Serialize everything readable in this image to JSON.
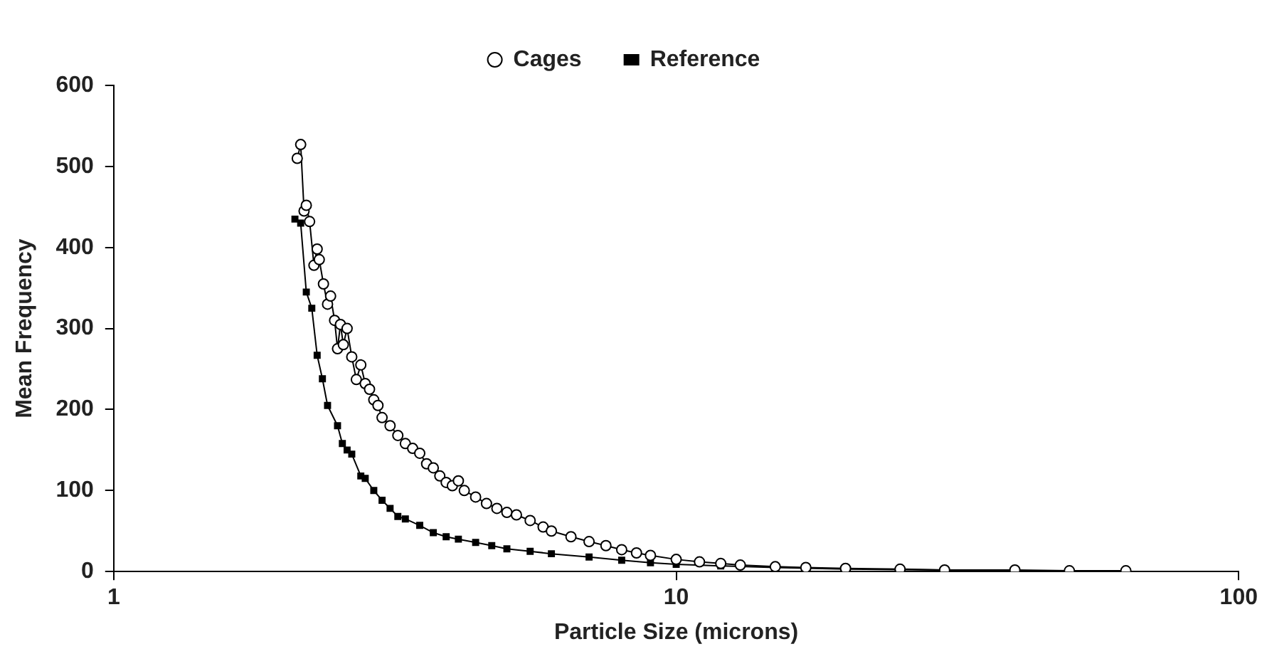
{
  "chart_data": {
    "type": "line",
    "xlabel": "Particle Size (microns)",
    "ylabel": "Mean Frequency",
    "log": "x",
    "xlim": [
      1,
      100
    ],
    "xticks": [
      1,
      10,
      100
    ],
    "ylim": [
      0,
      600
    ],
    "yticks": [
      0,
      100,
      200,
      300,
      400,
      500,
      600
    ],
    "legend": "top",
    "grid": false,
    "line_style": "solid",
    "series": [
      {
        "name": "Cages",
        "color": "#000000",
        "marker": "circle",
        "x": [
          2.12,
          2.15,
          2.18,
          2.2,
          2.23,
          2.27,
          2.3,
          2.32,
          2.36,
          2.4,
          2.43,
          2.47,
          2.5,
          2.53,
          2.56,
          2.6,
          2.65,
          2.7,
          2.75,
          2.8,
          2.85,
          2.9,
          2.95,
          3.0,
          3.1,
          3.2,
          3.3,
          3.4,
          3.5,
          3.6,
          3.7,
          3.8,
          3.9,
          4.0,
          4.1,
          4.2,
          4.4,
          4.6,
          4.8,
          5.0,
          5.2,
          5.5,
          5.8,
          6.0,
          6.5,
          7.0,
          7.5,
          8,
          8.5,
          9,
          10,
          11,
          12,
          13,
          15,
          17,
          20,
          25,
          30,
          40,
          50,
          63
        ],
        "values": [
          510,
          527,
          445,
          452,
          432,
          378,
          398,
          385,
          355,
          330,
          340,
          310,
          275,
          305,
          280,
          300,
          265,
          237,
          255,
          232,
          225,
          212,
          205,
          190,
          180,
          168,
          158,
          152,
          146,
          133,
          128,
          118,
          110,
          106,
          112,
          100,
          92,
          84,
          78,
          73,
          70,
          63,
          55,
          50,
          43,
          37,
          32,
          27,
          23,
          20,
          15,
          12,
          10,
          8,
          6,
          5,
          4,
          3,
          2,
          2,
          1,
          1
        ]
      },
      {
        "name": "Reference",
        "color": "#000000",
        "marker": "square",
        "x": [
          2.1,
          2.15,
          2.2,
          2.25,
          2.3,
          2.35,
          2.4,
          2.5,
          2.55,
          2.6,
          2.65,
          2.75,
          2.8,
          2.9,
          3.0,
          3.1,
          3.2,
          3.3,
          3.5,
          3.7,
          3.9,
          4.1,
          4.4,
          4.7,
          5.0,
          5.5,
          6,
          7,
          8,
          9,
          10,
          12,
          15,
          20,
          30,
          40,
          63
        ],
        "values": [
          435,
          430,
          345,
          325,
          267,
          238,
          205,
          180,
          158,
          150,
          145,
          118,
          115,
          100,
          88,
          78,
          68,
          65,
          57,
          48,
          43,
          40,
          36,
          32,
          28,
          25,
          22,
          18,
          14,
          11,
          9,
          7,
          5,
          3,
          2,
          1,
          1
        ]
      }
    ]
  }
}
